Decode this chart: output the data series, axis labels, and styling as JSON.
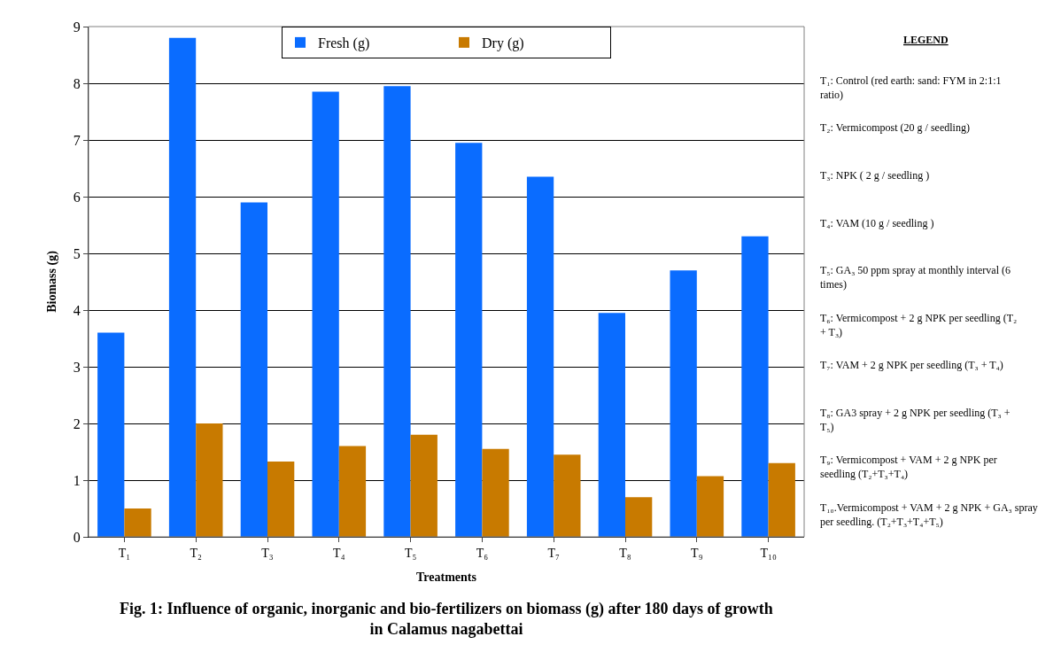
{
  "chart_data": {
    "type": "bar",
    "title": "Fig. 1: Influence of organic, inorganic and bio-fertilizers on biomass (g) after 180 days of growth in Calamus nagabettai",
    "xlabel": "Treatments",
    "ylabel": "Biomass (g)",
    "categories": [
      "T₁",
      "T₂",
      "T₃",
      "T₄",
      "T₅",
      "T₆",
      "T₇",
      "T₈",
      "T₉",
      "T₁₀"
    ],
    "series": [
      {
        "name": "Fresh (g)",
        "color": "#0a6cff",
        "values": [
          3.6,
          8.8,
          5.9,
          7.85,
          7.95,
          6.95,
          6.35,
          3.95,
          4.7,
          5.3
        ]
      },
      {
        "name": "Dry (g)",
        "color": "#c87a00",
        "values": [
          0.5,
          2.0,
          1.33,
          1.6,
          1.8,
          1.55,
          1.45,
          0.7,
          1.07,
          1.3
        ]
      }
    ],
    "ylim": [
      0,
      9
    ],
    "yticks": [
      0,
      1,
      2,
      3,
      4,
      5,
      6,
      7,
      8,
      9
    ],
    "grid": "y",
    "legend": "top",
    "legend_title": "LEGEND",
    "annotations": [
      "T₁: Control (red earth: sand: FYM in 2:1:1 ratio)",
      "T₂: Vermicompost (20 g / seedling)",
      "T₃: NPK ( 2 g / seedling )",
      "T₄: VAM (10 g / seedling )",
      "T₅: GA₃ 50 ppm spray at monthly interval (6 times)",
      "T₆: Vermicompost + 2 g NPK per seedling (T₂ + T₃)",
      "T₇: VAM + 2 g NPK per seedling (T₃ + T₄)",
      "T₈: GA3 spray + 2 g NPK per seedling (T₃ + T₅)",
      "T₉: Vermicompost + VAM + 2 g NPK per seedling (T₂+T₃+T₄)",
      "T₁₀.Vermicompost + VAM + 2 g NPK + GA₃ spray per seedling. (T₂+T₃+T₄+T₅)"
    ]
  }
}
